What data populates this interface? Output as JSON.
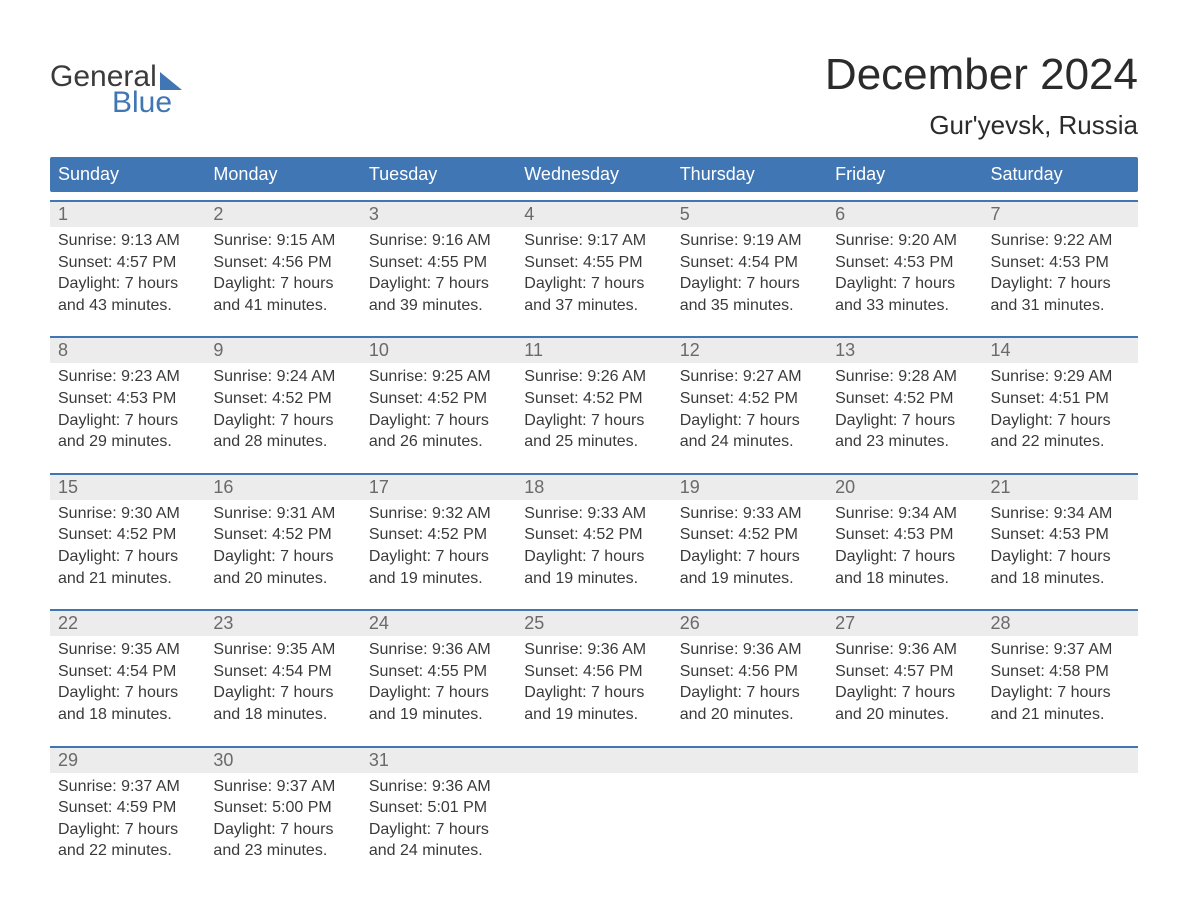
{
  "brand": {
    "line1": "General",
    "line2": "Blue"
  },
  "title": "December 2024",
  "location": "Gur'yevsk, Russia",
  "colors": {
    "header_bg": "#3f76b3",
    "header_text": "#ffffff",
    "daynum_bg": "#ececec",
    "daynum_text": "#6a6a6a",
    "body_text": "#3a3a3a",
    "rule": "#3f76b3",
    "page_bg": "#ffffff"
  },
  "dayHeaders": [
    "Sunday",
    "Monday",
    "Tuesday",
    "Wednesday",
    "Thursday",
    "Friday",
    "Saturday"
  ],
  "weeks": [
    [
      {
        "n": "1",
        "sr": "9:13 AM",
        "ss": "4:57 PM",
        "dl": "7 hours and 43 minutes."
      },
      {
        "n": "2",
        "sr": "9:15 AM",
        "ss": "4:56 PM",
        "dl": "7 hours and 41 minutes."
      },
      {
        "n": "3",
        "sr": "9:16 AM",
        "ss": "4:55 PM",
        "dl": "7 hours and 39 minutes."
      },
      {
        "n": "4",
        "sr": "9:17 AM",
        "ss": "4:55 PM",
        "dl": "7 hours and 37 minutes."
      },
      {
        "n": "5",
        "sr": "9:19 AM",
        "ss": "4:54 PM",
        "dl": "7 hours and 35 minutes."
      },
      {
        "n": "6",
        "sr": "9:20 AM",
        "ss": "4:53 PM",
        "dl": "7 hours and 33 minutes."
      },
      {
        "n": "7",
        "sr": "9:22 AM",
        "ss": "4:53 PM",
        "dl": "7 hours and 31 minutes."
      }
    ],
    [
      {
        "n": "8",
        "sr": "9:23 AM",
        "ss": "4:53 PM",
        "dl": "7 hours and 29 minutes."
      },
      {
        "n": "9",
        "sr": "9:24 AM",
        "ss": "4:52 PM",
        "dl": "7 hours and 28 minutes."
      },
      {
        "n": "10",
        "sr": "9:25 AM",
        "ss": "4:52 PM",
        "dl": "7 hours and 26 minutes."
      },
      {
        "n": "11",
        "sr": "9:26 AM",
        "ss": "4:52 PM",
        "dl": "7 hours and 25 minutes."
      },
      {
        "n": "12",
        "sr": "9:27 AM",
        "ss": "4:52 PM",
        "dl": "7 hours and 24 minutes."
      },
      {
        "n": "13",
        "sr": "9:28 AM",
        "ss": "4:52 PM",
        "dl": "7 hours and 23 minutes."
      },
      {
        "n": "14",
        "sr": "9:29 AM",
        "ss": "4:51 PM",
        "dl": "7 hours and 22 minutes."
      }
    ],
    [
      {
        "n": "15",
        "sr": "9:30 AM",
        "ss": "4:52 PM",
        "dl": "7 hours and 21 minutes."
      },
      {
        "n": "16",
        "sr": "9:31 AM",
        "ss": "4:52 PM",
        "dl": "7 hours and 20 minutes."
      },
      {
        "n": "17",
        "sr": "9:32 AM",
        "ss": "4:52 PM",
        "dl": "7 hours and 19 minutes."
      },
      {
        "n": "18",
        "sr": "9:33 AM",
        "ss": "4:52 PM",
        "dl": "7 hours and 19 minutes."
      },
      {
        "n": "19",
        "sr": "9:33 AM",
        "ss": "4:52 PM",
        "dl": "7 hours and 19 minutes."
      },
      {
        "n": "20",
        "sr": "9:34 AM",
        "ss": "4:53 PM",
        "dl": "7 hours and 18 minutes."
      },
      {
        "n": "21",
        "sr": "9:34 AM",
        "ss": "4:53 PM",
        "dl": "7 hours and 18 minutes."
      }
    ],
    [
      {
        "n": "22",
        "sr": "9:35 AM",
        "ss": "4:54 PM",
        "dl": "7 hours and 18 minutes."
      },
      {
        "n": "23",
        "sr": "9:35 AM",
        "ss": "4:54 PM",
        "dl": "7 hours and 18 minutes."
      },
      {
        "n": "24",
        "sr": "9:36 AM",
        "ss": "4:55 PM",
        "dl": "7 hours and 19 minutes."
      },
      {
        "n": "25",
        "sr": "9:36 AM",
        "ss": "4:56 PM",
        "dl": "7 hours and 19 minutes."
      },
      {
        "n": "26",
        "sr": "9:36 AM",
        "ss": "4:56 PM",
        "dl": "7 hours and 20 minutes."
      },
      {
        "n": "27",
        "sr": "9:36 AM",
        "ss": "4:57 PM",
        "dl": "7 hours and 20 minutes."
      },
      {
        "n": "28",
        "sr": "9:37 AM",
        "ss": "4:58 PM",
        "dl": "7 hours and 21 minutes."
      }
    ],
    [
      {
        "n": "29",
        "sr": "9:37 AM",
        "ss": "4:59 PM",
        "dl": "7 hours and 22 minutes."
      },
      {
        "n": "30",
        "sr": "9:37 AM",
        "ss": "5:00 PM",
        "dl": "7 hours and 23 minutes."
      },
      {
        "n": "31",
        "sr": "9:36 AM",
        "ss": "5:01 PM",
        "dl": "7 hours and 24 minutes."
      },
      null,
      null,
      null,
      null
    ]
  ],
  "labels": {
    "sunrise": "Sunrise:",
    "sunset": "Sunset:",
    "daylight": "Daylight:"
  }
}
